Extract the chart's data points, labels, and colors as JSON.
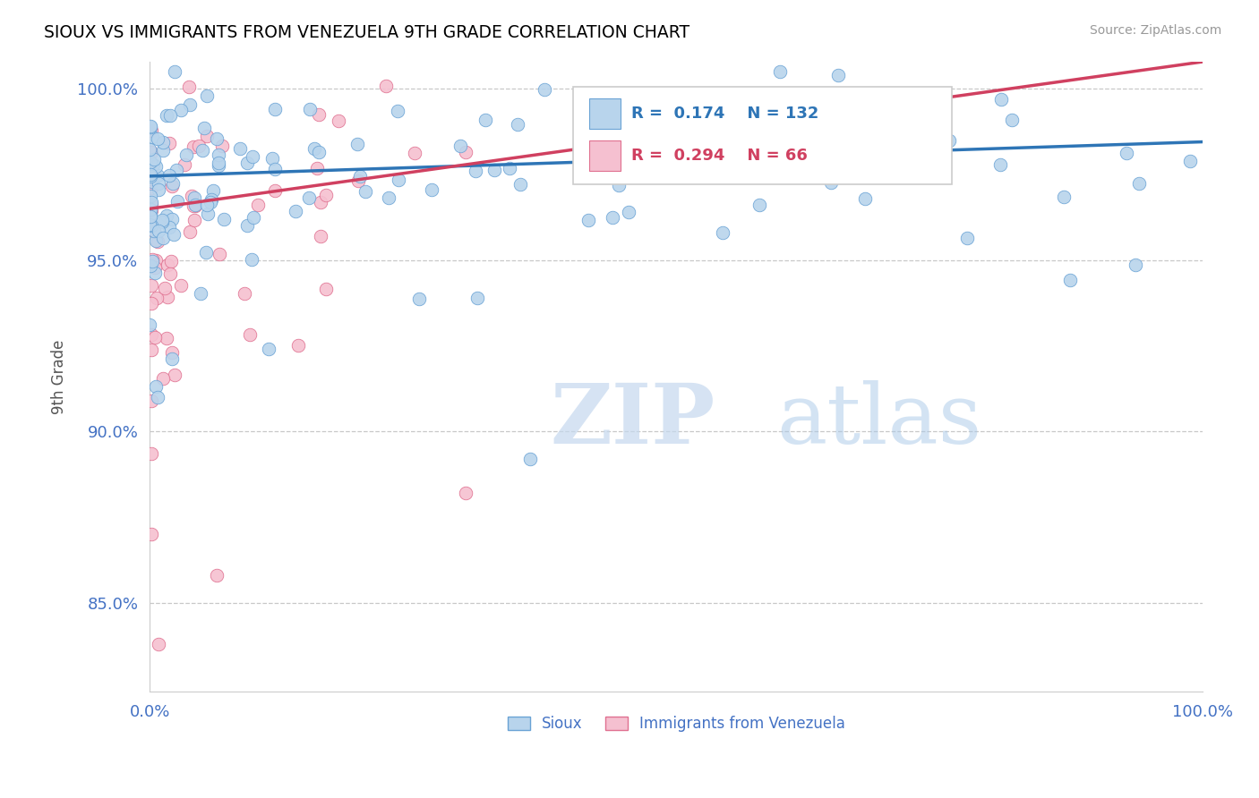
{
  "title": "SIOUX VS IMMIGRANTS FROM VENEZUELA 9TH GRADE CORRELATION CHART",
  "source": "Source: ZipAtlas.com",
  "ylabel_label": "9th Grade",
  "x_min": 0.0,
  "x_max": 1.0,
  "y_min": 0.824,
  "y_max": 1.008,
  "yticks": [
    0.85,
    0.9,
    0.95,
    1.0
  ],
  "ytick_labels": [
    "85.0%",
    "90.0%",
    "95.0%",
    "100.0%"
  ],
  "sioux_color": "#b8d4ec",
  "sioux_edge_color": "#6aa3d5",
  "venezuela_color": "#f5c0d0",
  "venezuela_edge_color": "#e07090",
  "trend_sioux_color": "#2e75b6",
  "trend_venezuela_color": "#d04060",
  "R_sioux": 0.174,
  "N_sioux": 132,
  "R_venezuela": 0.294,
  "N_venezuela": 66,
  "legend_sioux_label": "Sioux",
  "legend_venezuela_label": "Immigrants from Venezuela",
  "watermark_zip": "ZIP",
  "watermark_atlas": "atlas",
  "background_color": "#ffffff",
  "title_color": "#000000",
  "tick_label_color": "#4472c4",
  "grid_color": "#c8c8c8",
  "marker_size": 110,
  "trend_sioux_x0": 0.0,
  "trend_sioux_y0": 0.9745,
  "trend_sioux_x1": 1.0,
  "trend_sioux_y1": 0.9845,
  "trend_ven_x0": 0.0,
  "trend_ven_y0": 0.965,
  "trend_ven_x1": 0.35,
  "trend_ven_y1": 0.98
}
